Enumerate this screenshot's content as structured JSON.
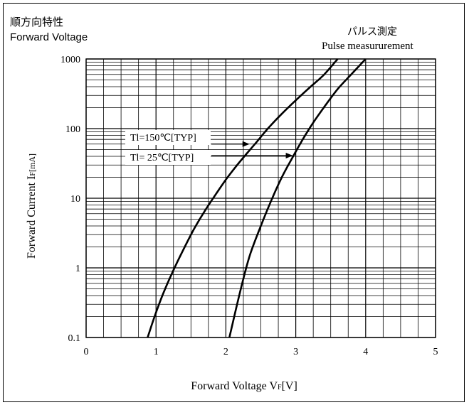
{
  "titles": {
    "jp": "順方向特性",
    "en": "Forward Voltage",
    "note_jp": "パルス測定",
    "note_en": "Pulse measururement"
  },
  "chart_data": {
    "type": "line",
    "title": "Forward Voltage",
    "xlabel_parts": [
      "Forward Voltage V",
      "F",
      "[V]"
    ],
    "ylabel_parts": [
      "Forward Current I",
      "F",
      "[mA]"
    ],
    "xlim": [
      0,
      5
    ],
    "ylim": [
      0.1,
      1000
    ],
    "yscale": "log",
    "grid": true,
    "x_ticks": [
      "0",
      "1",
      "2",
      "3",
      "4",
      "5"
    ],
    "y_ticks": [
      "0.1",
      "1",
      "10",
      "100",
      "1000"
    ],
    "x_tick_values": [
      0,
      1,
      2,
      3,
      4,
      5
    ],
    "y_tick_values": [
      0.1,
      1,
      10,
      100,
      1000
    ],
    "series": [
      {
        "name": "Tl=150℃[TYP]",
        "x": [
          0.88,
          0.98,
          1.1,
          1.25,
          1.4,
          1.55,
          1.7,
          1.85,
          2.0,
          2.15,
          2.3,
          2.45,
          2.6,
          2.8,
          3.0,
          3.2,
          3.4,
          3.6
        ],
        "y": [
          0.1,
          0.2,
          0.42,
          0.93,
          1.9,
          3.7,
          6.6,
          11.2,
          18.5,
          29,
          44,
          66,
          100,
          163,
          255,
          390,
          590,
          1000
        ]
      },
      {
        "name": "Tl=  25℃[TYP]",
        "x": [
          2.05,
          2.15,
          2.25,
          2.35,
          2.5,
          2.65,
          2.8,
          2.95,
          3.1,
          3.25,
          3.4,
          3.6,
          3.8,
          4.0
        ],
        "y": [
          0.1,
          0.27,
          0.7,
          1.6,
          4.0,
          9.3,
          20,
          38,
          70,
          122,
          200,
          370,
          610,
          1000
        ]
      }
    ],
    "annotations": [
      {
        "text": "Tl=150℃[TYP]",
        "target_x": 2.38,
        "target_y": 60
      },
      {
        "text": "Tl=  25℃[TYP]",
        "target_x": 3.0,
        "target_y": 41
      }
    ]
  }
}
